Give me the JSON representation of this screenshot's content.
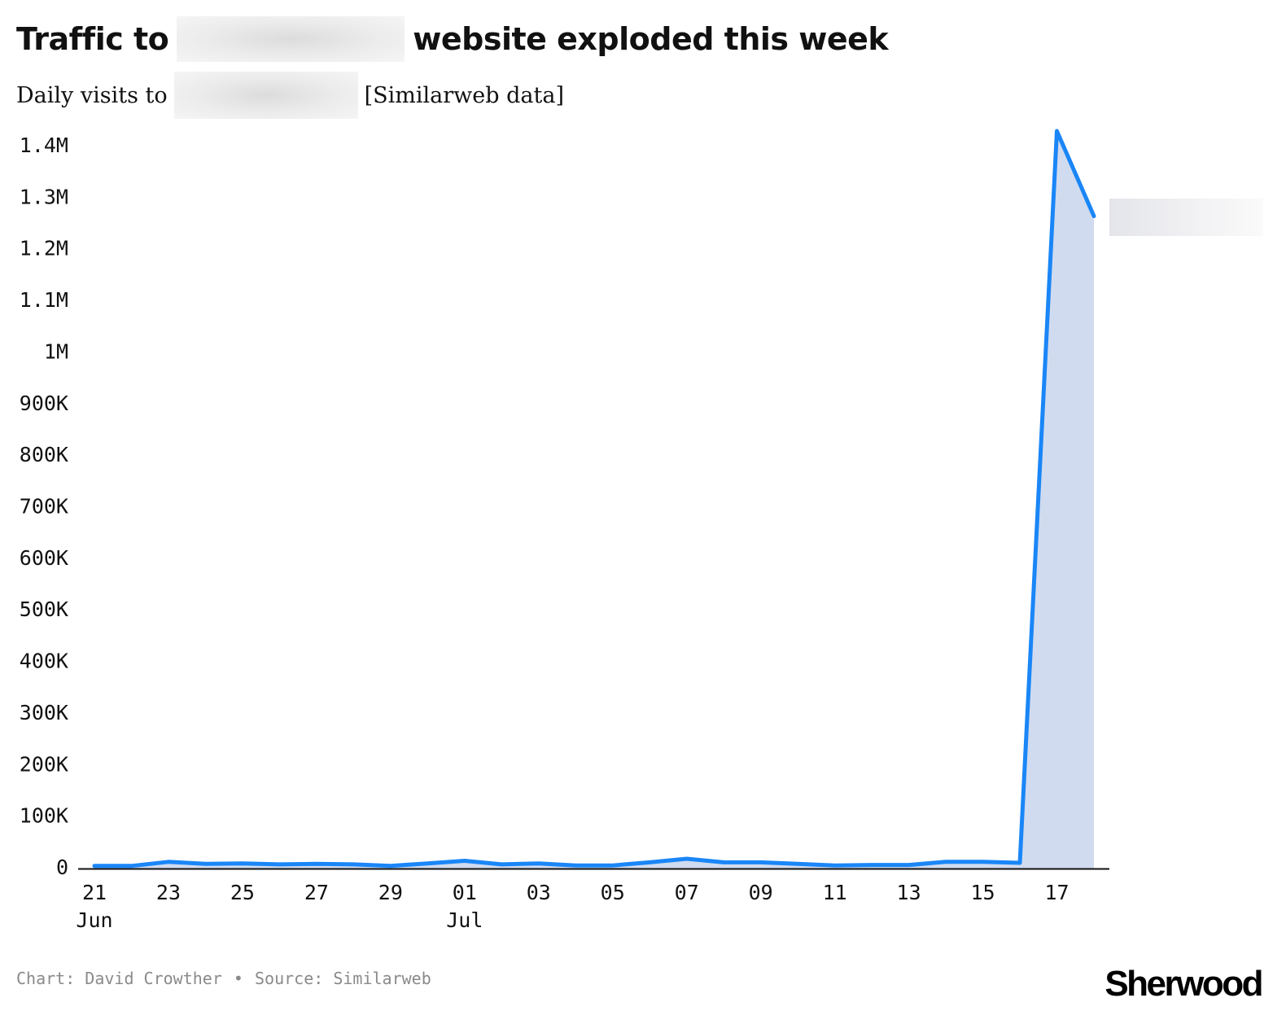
{
  "header": {
    "title_before": "Traffic to",
    "title_after": "website exploded this week",
    "subtitle_before": "Daily visits to",
    "subtitle_after": "[Similarweb data]"
  },
  "footer": {
    "credit": "Chart: David Crowther",
    "separator": "•",
    "source": "Source: Similarweb",
    "logo": "Sherwood"
  },
  "colors": {
    "line": "#1a86f7",
    "area": "#d0dbef",
    "axis": "#111111",
    "text": "#111111",
    "muted": "#8a8a8a"
  },
  "chart_data": {
    "type": "area",
    "title": "",
    "xlabel": "",
    "ylabel": "",
    "ylim": [
      0,
      1400000
    ],
    "y_ticks": [
      0,
      100000,
      200000,
      300000,
      400000,
      500000,
      600000,
      700000,
      800000,
      900000,
      1000000,
      1100000,
      1200000,
      1300000,
      1400000
    ],
    "y_tick_labels": [
      "0",
      "100K",
      "200K",
      "300K",
      "400K",
      "500K",
      "600K",
      "700K",
      "800K",
      "900K",
      "1M",
      "1.1M",
      "1.2M",
      "1.3M",
      "1.4M"
    ],
    "x_ticks": [
      {
        "date": "2024-06-21",
        "label": "21",
        "sublabel": "Jun"
      },
      {
        "date": "2024-06-23",
        "label": "23"
      },
      {
        "date": "2024-06-25",
        "label": "25"
      },
      {
        "date": "2024-06-27",
        "label": "27"
      },
      {
        "date": "2024-06-29",
        "label": "29"
      },
      {
        "date": "2024-07-01",
        "label": "01",
        "sublabel": "Jul"
      },
      {
        "date": "2024-07-03",
        "label": "03"
      },
      {
        "date": "2024-07-05",
        "label": "05"
      },
      {
        "date": "2024-07-07",
        "label": "07"
      },
      {
        "date": "2024-07-09",
        "label": "09"
      },
      {
        "date": "2024-07-11",
        "label": "11"
      },
      {
        "date": "2024-07-13",
        "label": "13"
      },
      {
        "date": "2024-07-15",
        "label": "15"
      },
      {
        "date": "2024-07-17",
        "label": "17"
      }
    ],
    "grid": false,
    "series": [
      {
        "values": [
          {
            "x": "2024-06-21",
            "y": 5000
          },
          {
            "x": "2024-06-22",
            "y": 5000
          },
          {
            "x": "2024-06-23",
            "y": 13000
          },
          {
            "x": "2024-06-24",
            "y": 9000
          },
          {
            "x": "2024-06-25",
            "y": 10000
          },
          {
            "x": "2024-06-26",
            "y": 8000
          },
          {
            "x": "2024-06-27",
            "y": 9000
          },
          {
            "x": "2024-06-28",
            "y": 8000
          },
          {
            "x": "2024-06-29",
            "y": 5000
          },
          {
            "x": "2024-06-30",
            "y": 10000
          },
          {
            "x": "2024-07-01",
            "y": 15000
          },
          {
            "x": "2024-07-02",
            "y": 8000
          },
          {
            "x": "2024-07-03",
            "y": 10000
          },
          {
            "x": "2024-07-04",
            "y": 6000
          },
          {
            "x": "2024-07-05",
            "y": 6000
          },
          {
            "x": "2024-07-06",
            "y": 12000
          },
          {
            "x": "2024-07-07",
            "y": 19000
          },
          {
            "x": "2024-07-08",
            "y": 12000
          },
          {
            "x": "2024-07-09",
            "y": 12000
          },
          {
            "x": "2024-07-10",
            "y": 9000
          },
          {
            "x": "2024-07-11",
            "y": 6000
          },
          {
            "x": "2024-07-12",
            "y": 7000
          },
          {
            "x": "2024-07-13",
            "y": 7000
          },
          {
            "x": "2024-07-14",
            "y": 13000
          },
          {
            "x": "2024-07-15",
            "y": 13000
          },
          {
            "x": "2024-07-16",
            "y": 11000
          },
          {
            "x": "2024-07-17",
            "y": 1430000
          },
          {
            "x": "2024-07-18",
            "y": 1265000
          }
        ]
      }
    ]
  }
}
